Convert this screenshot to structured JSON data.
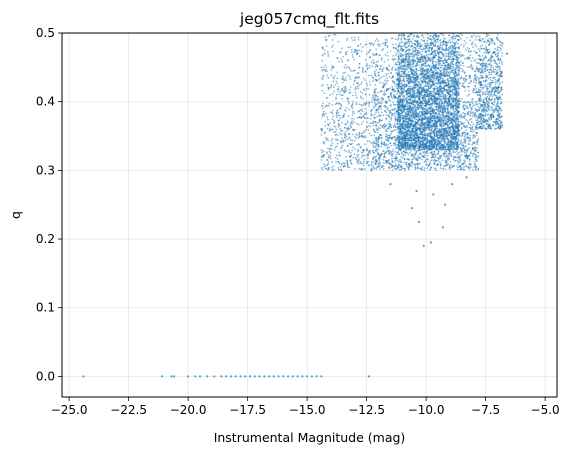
{
  "chart_data": {
    "type": "scatter",
    "title": "jeg057cmq_flt.fits",
    "xlabel": "Instrumental Magnitude (mag)",
    "ylabel": "q",
    "xlim": [
      -25.3,
      -4.5
    ],
    "ylim": [
      -0.03,
      0.5
    ],
    "grid": true,
    "point_color": "#1f77b4",
    "x_ticks": [
      -25.0,
      -22.5,
      -20.0,
      -17.5,
      -15.0,
      -12.5,
      -10.0,
      -7.5,
      -5.0
    ],
    "x_tick_labels": [
      "−25.0",
      "−22.5",
      "−20.0",
      "−17.5",
      "−15.0",
      "−12.5",
      "−10.0",
      "−7.5",
      "−5.0"
    ],
    "y_ticks": [
      0.0,
      0.1,
      0.2,
      0.3,
      0.4,
      0.5
    ],
    "y_tick_labels": [
      "0.0",
      "0.1",
      "0.2",
      "0.3",
      "0.4",
      "0.5"
    ],
    "series": [
      {
        "points": [
          [
            -24.4,
            0.0
          ],
          [
            -21.1,
            0.0
          ],
          [
            -20.7,
            0.0
          ],
          [
            -20.6,
            0.0
          ],
          [
            -20.0,
            0.0
          ],
          [
            -19.7,
            0.0
          ],
          [
            -19.5,
            0.0
          ],
          [
            -19.2,
            0.0
          ],
          [
            -18.9,
            0.0
          ],
          [
            -18.6,
            0.0
          ],
          [
            -18.4,
            0.0
          ],
          [
            -18.2,
            0.0
          ],
          [
            -18.0,
            0.0
          ],
          [
            -17.8,
            0.0
          ],
          [
            -17.6,
            0.0
          ],
          [
            -17.4,
            0.0
          ],
          [
            -17.2,
            0.0
          ],
          [
            -17.0,
            0.0
          ],
          [
            -16.8,
            0.0
          ],
          [
            -16.6,
            0.0
          ],
          [
            -16.4,
            0.0
          ],
          [
            -16.2,
            0.0
          ],
          [
            -16.0,
            0.0
          ],
          [
            -15.8,
            0.0
          ],
          [
            -15.6,
            0.0
          ],
          [
            -15.4,
            0.0
          ],
          [
            -15.2,
            0.0
          ],
          [
            -15.0,
            0.0
          ],
          [
            -14.8,
            0.0
          ],
          [
            -14.6,
            0.0
          ],
          [
            -14.4,
            0.0
          ],
          [
            -12.4,
            0.0
          ],
          [
            -10.1,
            0.19
          ],
          [
            -9.8,
            0.195
          ],
          [
            -9.3,
            0.217
          ],
          [
            -10.3,
            0.225
          ],
          [
            -10.6,
            0.245
          ],
          [
            -9.2,
            0.25
          ],
          [
            -10.4,
            0.27
          ],
          [
            -9.7,
            0.265
          ],
          [
            -8.9,
            0.28
          ],
          [
            -11.5,
            0.28
          ],
          [
            -12.3,
            0.3
          ],
          [
            -8.3,
            0.29
          ],
          [
            -13.2,
            0.32
          ],
          [
            -7.9,
            0.305
          ],
          [
            -14.4,
            0.36
          ],
          [
            -14.1,
            0.42
          ],
          [
            -14.2,
            0.49
          ],
          [
            -7.0,
            0.45
          ],
          [
            -6.8,
            0.485
          ],
          [
            -6.6,
            0.47
          ],
          [
            -7.3,
            0.38
          ],
          [
            -12.7,
            0.35
          ],
          [
            -13.6,
            0.39
          ],
          [
            -13.9,
            0.45
          ],
          [
            -12.9,
            0.47
          ]
        ]
      }
    ],
    "dense_regions": [
      {
        "x": [
          -11.2,
          -8.6
        ],
        "y": [
          0.33,
          0.5
        ],
        "density": "very high"
      },
      {
        "x": [
          -12.2,
          -7.8
        ],
        "y": [
          0.3,
          0.5
        ],
        "density": "high"
      },
      {
        "x": [
          -14.4,
          -12.2
        ],
        "y": [
          0.3,
          0.5
        ],
        "density": "medium"
      },
      {
        "x": [
          -7.8,
          -6.8
        ],
        "y": [
          0.36,
          0.5
        ],
        "density": "medium"
      }
    ]
  }
}
